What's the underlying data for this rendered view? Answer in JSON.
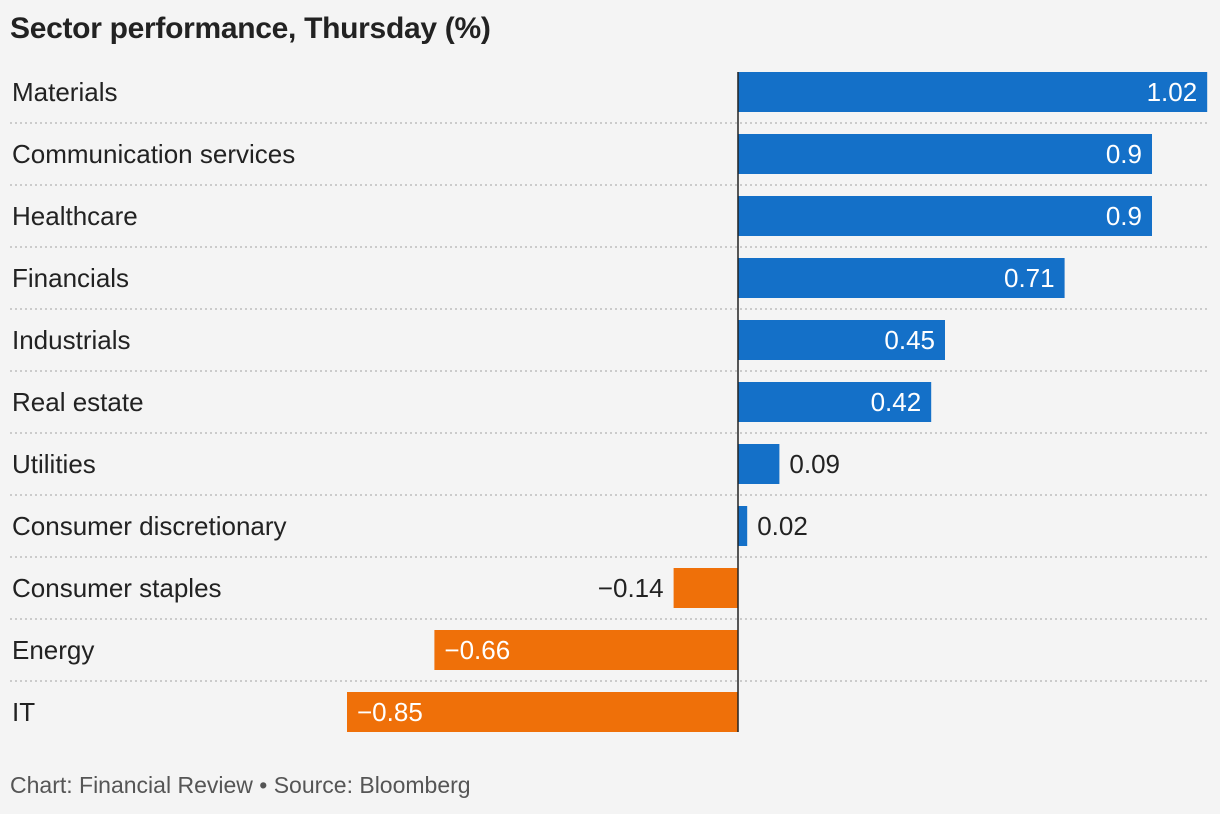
{
  "title": "Sector performance, Thursday (%)",
  "footer": "Chart: Financial Review • Source: Bloomberg",
  "colors": {
    "positive": "#1470c8",
    "negative": "#ef7009",
    "axis": "#222222",
    "grid": "#bdbdbd",
    "text": "#222222"
  },
  "chart_data": {
    "type": "bar",
    "orientation": "horizontal",
    "title": "Sector performance, Thursday (%)",
    "categories": [
      "Materials",
      "Communication services",
      "Healthcare",
      "Financials",
      "Industrials",
      "Real estate",
      "Utilities",
      "Consumer discretionary",
      "Consumer staples",
      "Energy",
      "IT"
    ],
    "values": [
      1.02,
      0.9,
      0.9,
      0.71,
      0.45,
      0.42,
      0.09,
      0.02,
      -0.14,
      -0.66,
      -0.85
    ],
    "labels": [
      "1.02",
      "0.9",
      "0.9",
      "0.71",
      "0.45",
      "0.42",
      "0.09",
      "0.02",
      "−0.14",
      "−0.66",
      "−0.85"
    ],
    "xlim": [
      -1.6,
      1.02
    ],
    "grid": true
  }
}
